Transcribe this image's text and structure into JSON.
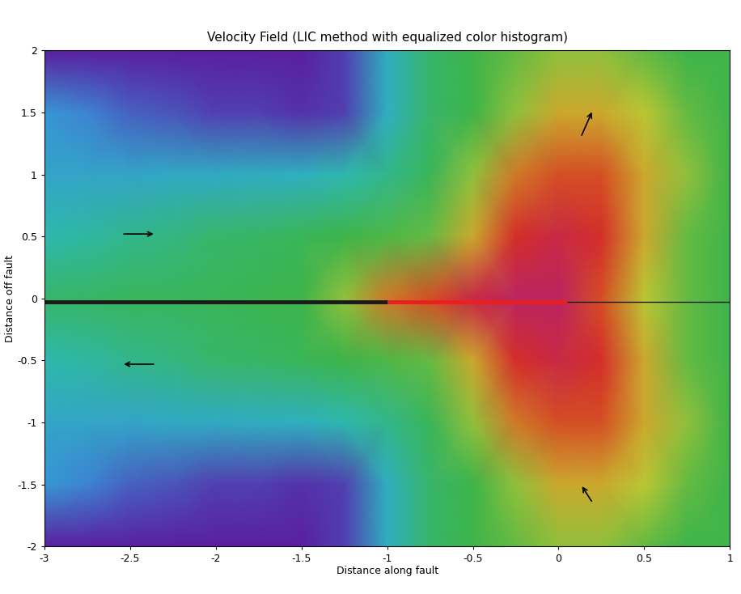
{
  "chart_data": {
    "type": "heatmap",
    "title": "Velocity Field (LIC method with equalized color histogram)",
    "x_label": "Distance along fault",
    "y_label": "Distance off fault",
    "xlim": [
      -3,
      1
    ],
    "ylim": [
      -2,
      2
    ],
    "xticks": [
      -3,
      -2.5,
      -2,
      -1.5,
      -1,
      -0.5,
      0,
      0.5,
      1
    ],
    "yticks": [
      -2,
      -1.5,
      -1,
      -0.5,
      0,
      0.5,
      1,
      1.5,
      2
    ],
    "x": [
      -3,
      -2.75,
      -2.5,
      -2.25,
      -2,
      -1.75,
      -1.5,
      -1.25,
      -1,
      -0.75,
      -0.5,
      -0.25,
      0,
      0.25,
      0.5,
      0.75,
      1
    ],
    "y": [
      2,
      1.5,
      1,
      0.5,
      0,
      -0.5,
      -1,
      -1.5,
      -2
    ],
    "values": [
      [
        0,
        0,
        0,
        0,
        0,
        0,
        0,
        0.5,
        3,
        4.5,
        5,
        5.5,
        6,
        6,
        5.5,
        5,
        5
      ],
      [
        2,
        1.5,
        1,
        0.8,
        0.5,
        0.5,
        0.3,
        0.5,
        3,
        4.5,
        5,
        6,
        7,
        7,
        6.5,
        5.5,
        5
      ],
      [
        2.5,
        2.5,
        2.5,
        2.7,
        2.8,
        2.9,
        3,
        3.5,
        4,
        4.8,
        6,
        7.5,
        8,
        8,
        7,
        6,
        5
      ],
      [
        3.5,
        3.7,
        4,
        4.2,
        4.5,
        4.6,
        4.8,
        5,
        5.2,
        5.5,
        7,
        8.5,
        9,
        8.5,
        7,
        5.5,
        5
      ],
      [
        4.5,
        4.6,
        4.7,
        4.7,
        4.8,
        4.9,
        5,
        6,
        7.5,
        8,
        9,
        9.5,
        9.5,
        8,
        6.5,
        5.5,
        5
      ],
      [
        3.5,
        3.7,
        4,
        4.2,
        4.5,
        4.6,
        4.8,
        5,
        5.2,
        5.5,
        7,
        8.5,
        9,
        8.5,
        7,
        5.5,
        5
      ],
      [
        2.5,
        2.5,
        2.5,
        2.7,
        2.8,
        2.9,
        3,
        3.5,
        4,
        4.8,
        6,
        7.5,
        8,
        8,
        7,
        6,
        5
      ],
      [
        2,
        1.5,
        1,
        0.8,
        0.5,
        0.5,
        0.3,
        0.5,
        3,
        4.5,
        5,
        6,
        7,
        7,
        6.5,
        5.5,
        5
      ],
      [
        0,
        0,
        0,
        0,
        0,
        0,
        0,
        0.5,
        3,
        4.5,
        5,
        5.5,
        6,
        6,
        5.5,
        5,
        5
      ]
    ],
    "value_range": [
      0,
      10
    ],
    "colors": [
      "#5a1fa0",
      "#3a8fd8",
      "#2cb8b8",
      "#3cb44a",
      "#c8c832",
      "#d83020",
      "#b0207a"
    ],
    "fault": [
      {
        "x": [
          -3,
          -1
        ],
        "y": [
          -0.03,
          -0.03
        ],
        "color": "#1a1a1a"
      },
      {
        "x": [
          -1,
          0.05
        ],
        "y": [
          -0.03,
          -0.03
        ],
        "color": "#e82020"
      },
      {
        "x": [
          0.05,
          1
        ],
        "y": [
          -0.03,
          -0.03
        ],
        "color": "#1a1a1a"
      }
    ],
    "vectors": [
      {
        "x": -2.55,
        "y": 0.52,
        "dx": 0.2,
        "dy": 0
      },
      {
        "x": -2.35,
        "y": -0.53,
        "dx": -0.2,
        "dy": 0
      },
      {
        "x": 0.13,
        "y": 1.3,
        "dx": 0.07,
        "dy": 0.22
      },
      {
        "x": 0.2,
        "y": -1.65,
        "dx": -0.07,
        "dy": 0.15
      }
    ]
  }
}
